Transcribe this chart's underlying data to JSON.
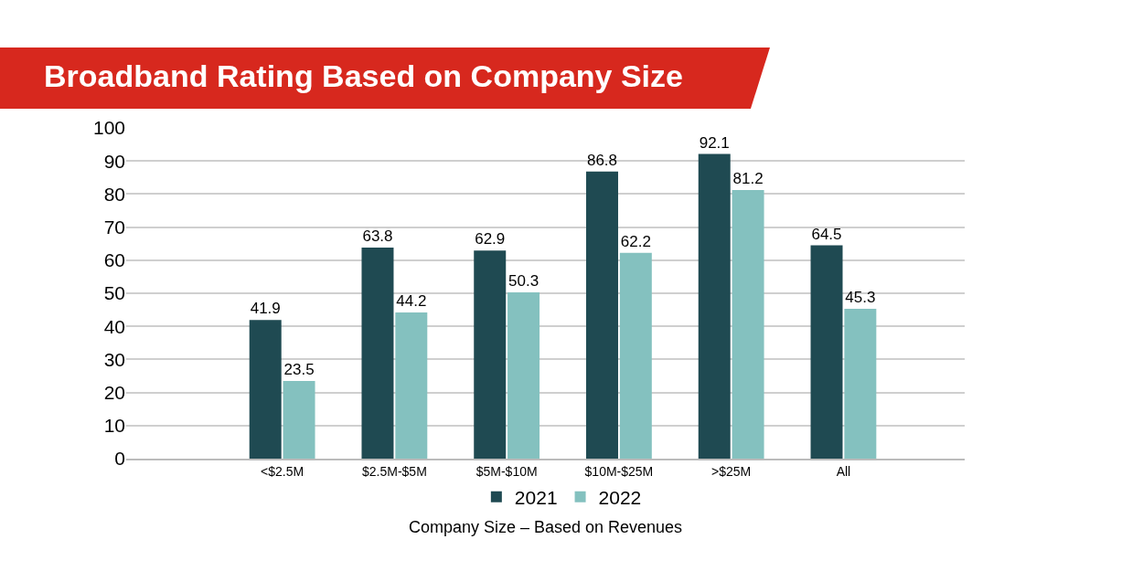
{
  "chart_data": {
    "type": "bar",
    "title": "Broadband Rating Based on Company Size",
    "xlabel": "Company Size – Based on Revenues",
    "categories": [
      "<$2.5M",
      "$2.5M-$5M",
      "$5M-$10M",
      "$10M-$25M",
      ">$25M",
      "All"
    ],
    "series": [
      {
        "name": "2021",
        "color": "#1f4a52",
        "values": [
          41.9,
          63.8,
          62.9,
          86.8,
          92.1,
          64.5
        ]
      },
      {
        "name": "2022",
        "color": "#84c1bf",
        "values": [
          23.5,
          44.2,
          50.3,
          62.2,
          81.2,
          45.3
        ]
      }
    ],
    "ylim": [
      0,
      100
    ],
    "yticks": [
      0,
      10,
      20,
      30,
      40,
      50,
      60,
      70,
      80,
      90,
      100
    ],
    "grid": "y",
    "legend": "bottom",
    "data_labels": true
  }
}
